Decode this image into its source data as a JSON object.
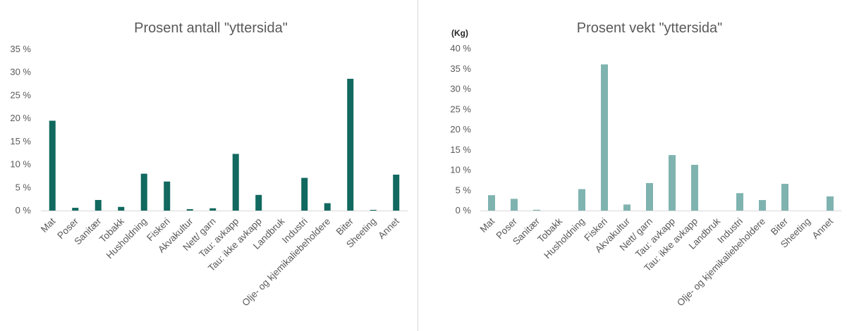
{
  "charts": [
    {
      "title": "Prosent antall \"yttersida\"",
      "unit_label": "",
      "bar_color": "#11695f"
    },
    {
      "title": "Prosent vekt \"yttersida\"",
      "unit_label": "(Kg)",
      "bar_color": "#7fb3b0"
    }
  ],
  "chart_data": [
    {
      "type": "bar",
      "title": "Prosent antall \"yttersida\"",
      "xlabel": "",
      "ylabel": "",
      "categories": [
        "Mat",
        "Poser",
        "Sanitær",
        "Tobakk",
        "Husholdning",
        "Fiskeri",
        "Akvakultur",
        "Nett/ garn",
        "Tau: avkapp",
        "Tau: ikke avkapp",
        "Landbruk",
        "Industri",
        "Olje- og kjemikaliebeholdere",
        "Biter",
        "Sheeting",
        "Annet"
      ],
      "values": [
        19.5,
        0.6,
        2.3,
        0.8,
        8.0,
        6.3,
        0.3,
        0.5,
        12.3,
        3.4,
        0.0,
        7.1,
        1.6,
        28.6,
        0.1,
        7.8
      ],
      "ylim": [
        0,
        35
      ],
      "yticks": [
        "0 %",
        "5 %",
        "10 %",
        "15 %",
        "20 %",
        "25 %",
        "30 %",
        "35 %"
      ],
      "grid": false,
      "legend": "none"
    },
    {
      "type": "bar",
      "title": "Prosent vekt \"yttersida\"",
      "xlabel": "",
      "ylabel": "(Kg)",
      "categories": [
        "Mat",
        "Poser",
        "Sanitær",
        "Tobakk",
        "Husholdning",
        "Fiskeri",
        "Akvakultur",
        "Nett/ garn",
        "Tau: avkapp",
        "Tau: ikke avkapp",
        "Landbruk",
        "Industri",
        "Olje- og kjemikaliebeholdere",
        "Biter",
        "Sheeting",
        "Annet"
      ],
      "values": [
        3.8,
        2.9,
        0.2,
        0.0,
        5.3,
        36.1,
        1.5,
        6.8,
        13.7,
        11.3,
        0.0,
        4.3,
        2.6,
        6.6,
        0.0,
        3.5
      ],
      "ylim": [
        0,
        40
      ],
      "yticks": [
        "0 %",
        "5 %",
        "10 %",
        "15 %",
        "20 %",
        "25 %",
        "30 %",
        "35 %",
        "40 %"
      ],
      "grid": false,
      "legend": "none"
    }
  ]
}
